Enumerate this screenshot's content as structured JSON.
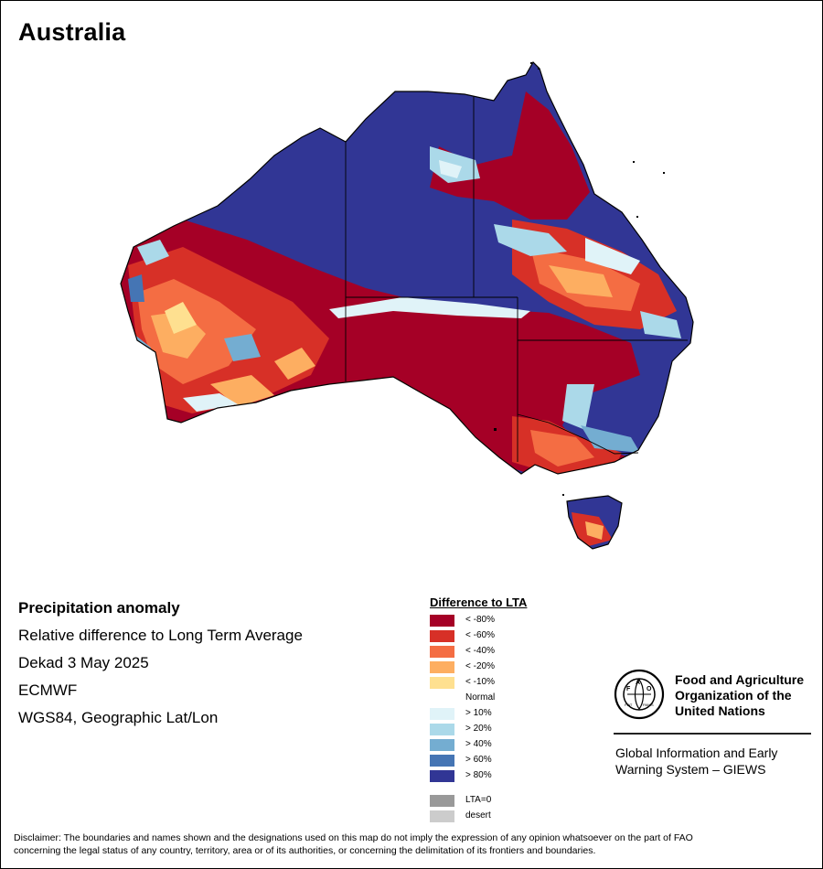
{
  "title": "Australia",
  "info": {
    "heading": "Precipitation anomaly",
    "subtitle": "Relative difference to Long Term Average",
    "period": "Dekad 3 May 2025",
    "source": "ECMWF",
    "projection": "WGS84, Geographic Lat/Lon"
  },
  "legend": {
    "title": "Difference to LTA",
    "items": [
      {
        "label": "< -80%",
        "color": "#a50026"
      },
      {
        "label": "< -60%",
        "color": "#d73027"
      },
      {
        "label": "< -40%",
        "color": "#f46d43"
      },
      {
        "label": "< -20%",
        "color": "#fdae61"
      },
      {
        "label": "< -10%",
        "color": "#fee090"
      },
      {
        "label": "Normal",
        "color": "#ffffff"
      },
      {
        "label": "> 10%",
        "color": "#e0f3f8"
      },
      {
        "label": "> 20%",
        "color": "#abd9e9"
      },
      {
        "label": "> 40%",
        "color": "#74add1"
      },
      {
        "label": "> 60%",
        "color": "#4575b4"
      },
      {
        "label": "> 80%",
        "color": "#313695"
      }
    ],
    "extra": [
      {
        "label": "LTA=0",
        "color": "#999999"
      },
      {
        "label": "desert",
        "color": "#cccccc"
      }
    ]
  },
  "org": {
    "line1": "Food and Agriculture",
    "line2": "Organization of the",
    "line3": "United Nations",
    "system1": "Global Information and Early",
    "system2": "Warning System – GIEWS",
    "logo_letters": "FAO",
    "logo_motto": "FIAT PANIS"
  },
  "disclaimer": {
    "line1": "Disclaimer: The boundaries and names shown and the designations used on this map do not imply the expression of any opinion whatsoever on the part of FAO",
    "line2": "concerning the legal status of any country, territory, area or of its authorities, or concerning the delimitation of its frontiers and boundaries."
  }
}
